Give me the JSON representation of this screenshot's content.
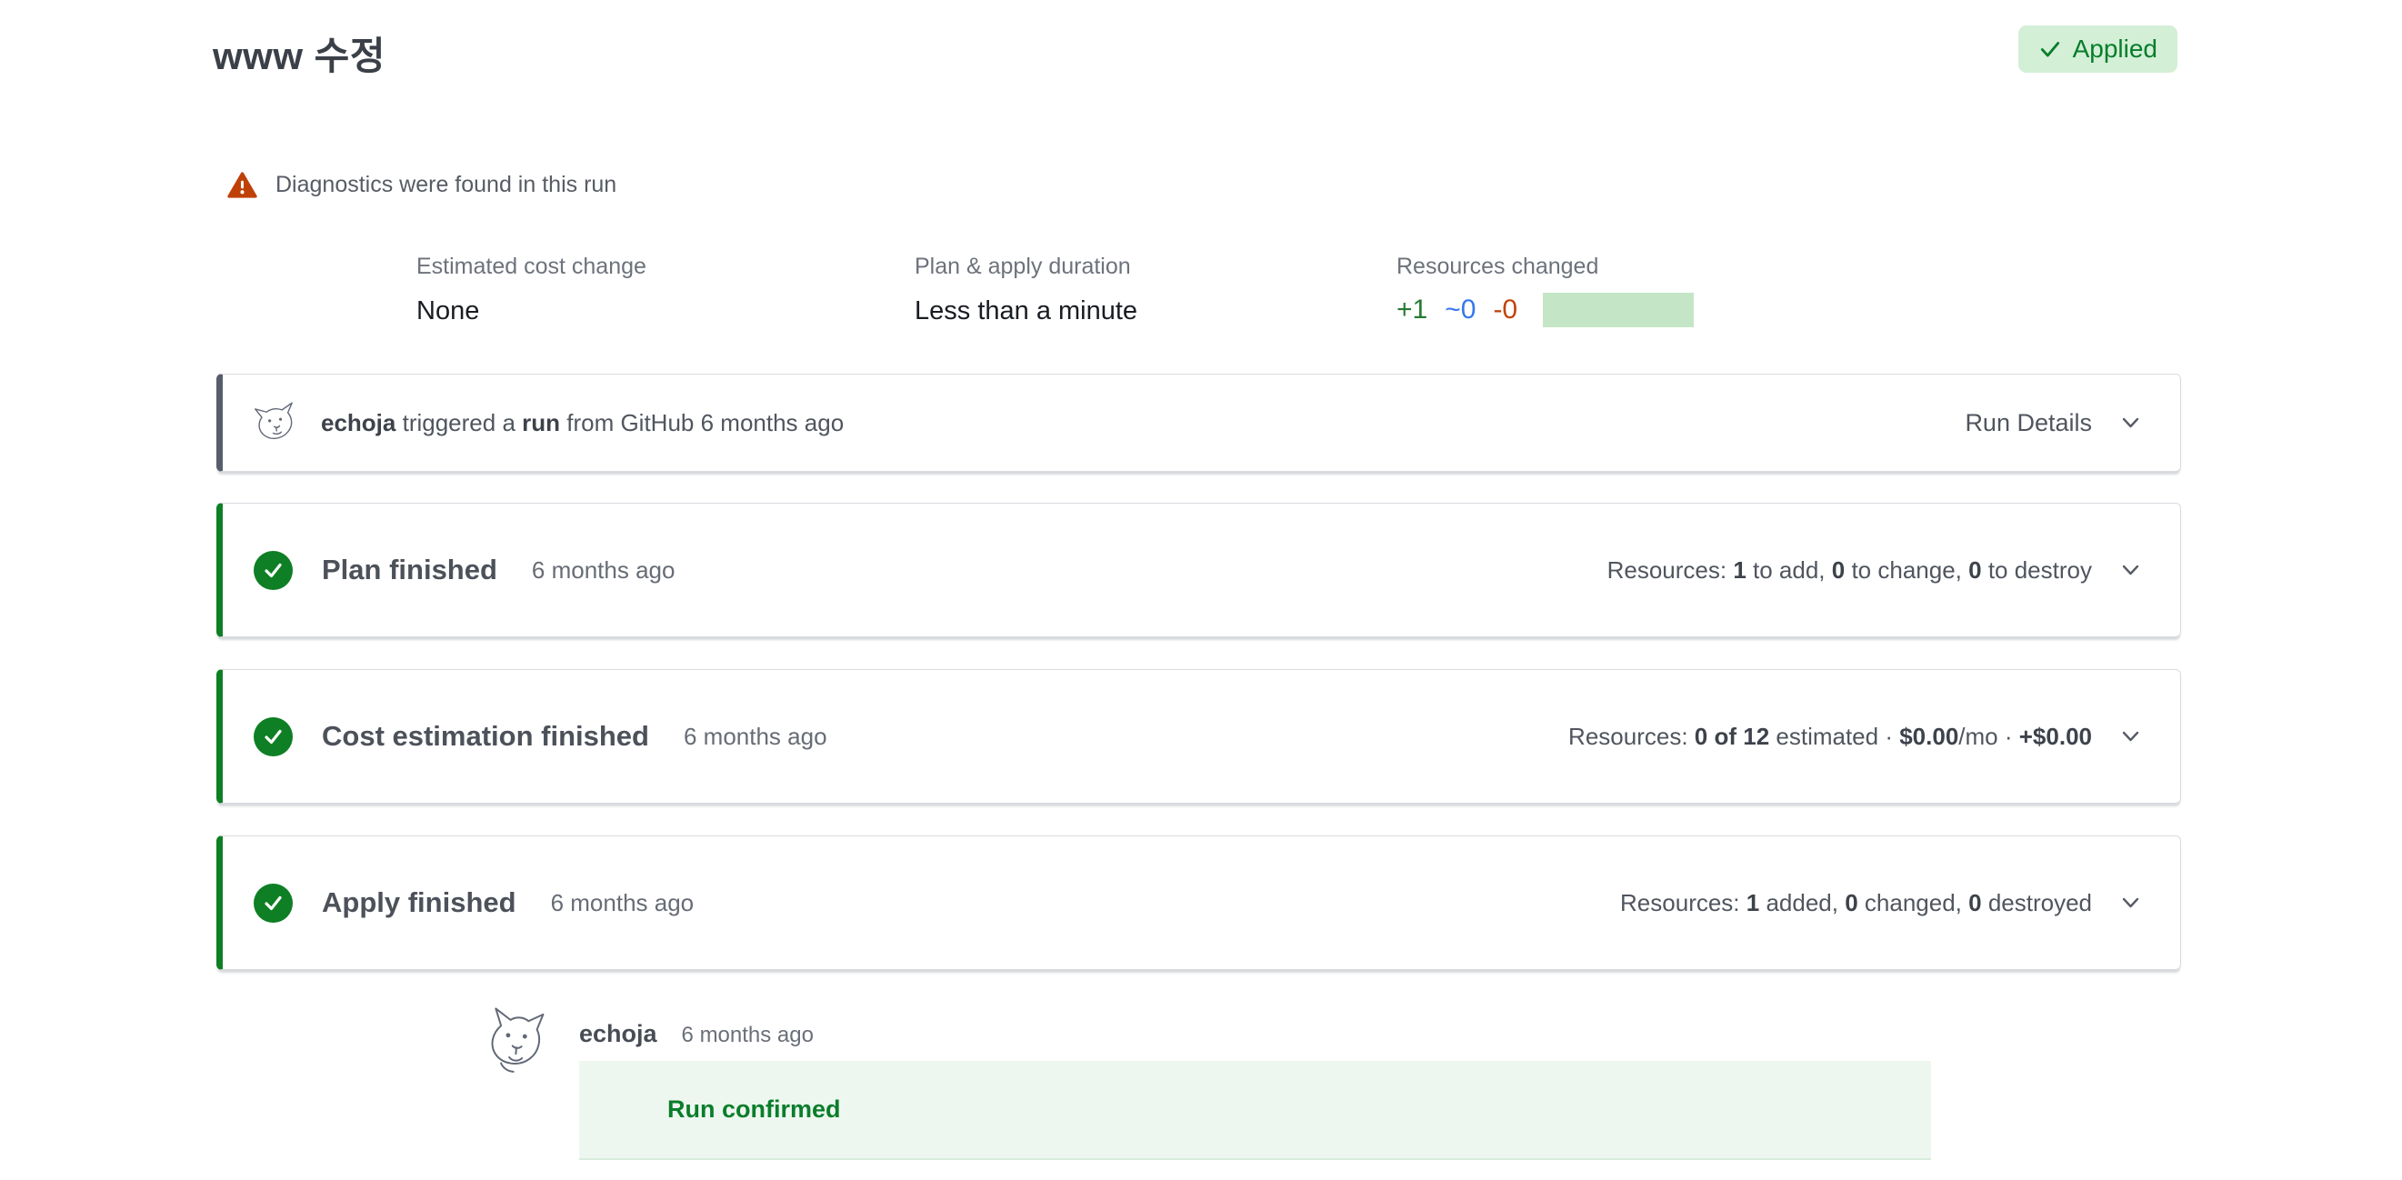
{
  "header": {
    "title": "www 수정",
    "badge": "Applied"
  },
  "diagnostics": {
    "message": "Diagnostics were found in this run"
  },
  "metrics": {
    "cost": {
      "label": "Estimated cost change",
      "value": "None"
    },
    "duration": {
      "label": "Plan & apply duration",
      "value": "Less than a minute"
    },
    "resources": {
      "label": "Resources changed",
      "added": "+1",
      "changed": "~0",
      "destroyed": "-0"
    }
  },
  "run_card": {
    "trigger": [
      {
        "t": "echoja",
        "b": true
      },
      {
        "t": " triggered a ",
        "b": false
      },
      {
        "t": "run",
        "b": true
      },
      {
        "t": " from GitHub 6 months ago",
        "b": false
      }
    ],
    "details_label": "Run Details"
  },
  "tasks": [
    {
      "title": "Plan finished",
      "time": "6 months ago",
      "summary": [
        {
          "t": "Resources: ",
          "b": false
        },
        {
          "t": "1",
          "b": true
        },
        {
          "t": " to add, ",
          "b": false
        },
        {
          "t": "0",
          "b": true
        },
        {
          "t": " to change, ",
          "b": false
        },
        {
          "t": "0",
          "b": true
        },
        {
          "t": " to destroy",
          "b": false
        }
      ]
    },
    {
      "title": "Cost estimation finished",
      "time": "6 months ago",
      "summary": [
        {
          "t": "Resources: ",
          "b": false
        },
        {
          "t": "0 of 12",
          "b": true
        },
        {
          "t": " estimated · ",
          "b": false
        },
        {
          "t": "$0.00",
          "b": true
        },
        {
          "t": "/mo · ",
          "b": false
        },
        {
          "t": "+$0.00",
          "b": true
        }
      ]
    },
    {
      "title": "Apply finished",
      "time": "6 months ago",
      "summary": [
        {
          "t": "Resources: ",
          "b": false
        },
        {
          "t": "1",
          "b": true
        },
        {
          "t": " added, ",
          "b": false
        },
        {
          "t": "0",
          "b": true
        },
        {
          "t": " changed, ",
          "b": false
        },
        {
          "t": "0",
          "b": true
        },
        {
          "t": " destroyed",
          "b": false
        }
      ]
    }
  ],
  "comment": {
    "author": "echoja",
    "time": "6 months ago",
    "message": "Run confirmed"
  },
  "icons": {
    "applied_check": "✓",
    "warning_triangle": "⚠",
    "task_check": "✓",
    "chevron_down": "⌄"
  },
  "colors": {
    "accent_green": "#0e7f24",
    "badge_bg": "#d3efd6",
    "badge_text": "#077d2b",
    "warning_orange": "#bf4108",
    "add_green": "#277a35",
    "change_blue": "#3677f0",
    "destroy_orange": "#c2430c",
    "bar_green": "#c5e6c6",
    "run_border": "#575e6b",
    "comment_bg": "#edf7f0",
    "comment_text": "#0b7d2b",
    "title_text": "#3b4048"
  }
}
